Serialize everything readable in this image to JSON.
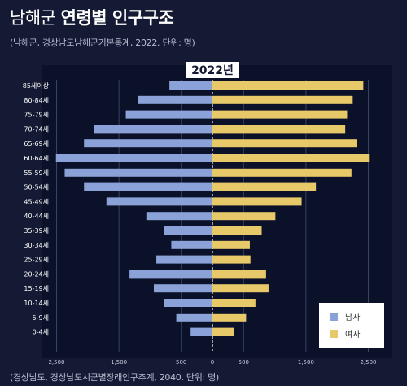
{
  "header": {
    "title_region": "남해군",
    "title_main": "연령별 인구구조",
    "subtitle": "(남해군, 경상남도남해군기본통계, 2022. 단위: 명)"
  },
  "footer": {
    "source": "(경상남도, 경상남도시군별장래인구추계, 2040. 단위: 명)"
  },
  "chart_data": {
    "type": "bar",
    "orientation": "horizontal-population-pyramid",
    "year_label": "2022년",
    "categories": [
      "85세이상",
      "80-84세",
      "75-79세",
      "70-74세",
      "65-69세",
      "60-64세",
      "55-59세",
      "50-54세",
      "45-49세",
      "40-44세",
      "35-39세",
      "30-34세",
      "25-29세",
      "20-24세",
      "15-19세",
      "10-14세",
      "5-9세",
      "0-4세"
    ],
    "series": [
      {
        "name": "남자",
        "side": "left",
        "color": "#8aa2d8",
        "values": [
          690,
          1190,
          1390,
          1900,
          2060,
          2510,
          2370,
          2060,
          1700,
          1060,
          780,
          660,
          900,
          1330,
          940,
          780,
          580,
          350
        ]
      },
      {
        "name": "여자",
        "side": "right",
        "color": "#e8c96a",
        "values": [
          2420,
          2250,
          2160,
          2130,
          2320,
          2510,
          2230,
          1660,
          1430,
          1010,
          790,
          600,
          610,
          860,
          900,
          690,
          540,
          340
        ]
      }
    ],
    "x_ticks": [
      "2,500",
      "1,500",
      "500",
      "0",
      "500",
      "1,500",
      "2,500"
    ],
    "x_tick_values": [
      -2500,
      -1500,
      -500,
      0,
      500,
      1500,
      2500
    ],
    "xlim": [
      -2900,
      2900
    ],
    "grid": true,
    "legend_position": "bottom-right"
  }
}
